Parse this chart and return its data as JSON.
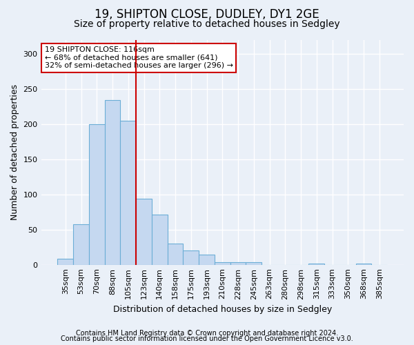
{
  "title1": "19, SHIPTON CLOSE, DUDLEY, DY1 2GE",
  "title2": "Size of property relative to detached houses in Sedgley",
  "xlabel": "Distribution of detached houses by size in Sedgley",
  "ylabel": "Number of detached properties",
  "categories": [
    "35sqm",
    "53sqm",
    "70sqm",
    "88sqm",
    "105sqm",
    "123sqm",
    "140sqm",
    "158sqm",
    "175sqm",
    "193sqm",
    "210sqm",
    "228sqm",
    "245sqm",
    "263sqm",
    "280sqm",
    "298sqm",
    "315sqm",
    "333sqm",
    "350sqm",
    "368sqm",
    "385sqm"
  ],
  "values": [
    9,
    58,
    200,
    234,
    205,
    94,
    71,
    30,
    20,
    14,
    4,
    4,
    4,
    0,
    0,
    0,
    2,
    0,
    0,
    2,
    0
  ],
  "bar_color": "#c5d8f0",
  "bar_edge_color": "#6baed6",
  "vline_x": 4.5,
  "vline_color": "#cc0000",
  "annotation_text": "19 SHIPTON CLOSE: 116sqm\n← 68% of detached houses are smaller (641)\n32% of semi-detached houses are larger (296) →",
  "annotation_box_color": "#ffffff",
  "annotation_box_edge": "#cc0000",
  "ylim": [
    0,
    320
  ],
  "yticks": [
    0,
    50,
    100,
    150,
    200,
    250,
    300
  ],
  "footer1": "Contains HM Land Registry data © Crown copyright and database right 2024.",
  "footer2": "Contains public sector information licensed under the Open Government Licence v3.0.",
  "bg_color": "#eaf0f8",
  "grid_color": "#ffffff",
  "title1_fontsize": 12,
  "title2_fontsize": 10,
  "xlabel_fontsize": 9,
  "ylabel_fontsize": 9,
  "tick_fontsize": 8,
  "footer_fontsize": 7,
  "annot_fontsize": 8
}
